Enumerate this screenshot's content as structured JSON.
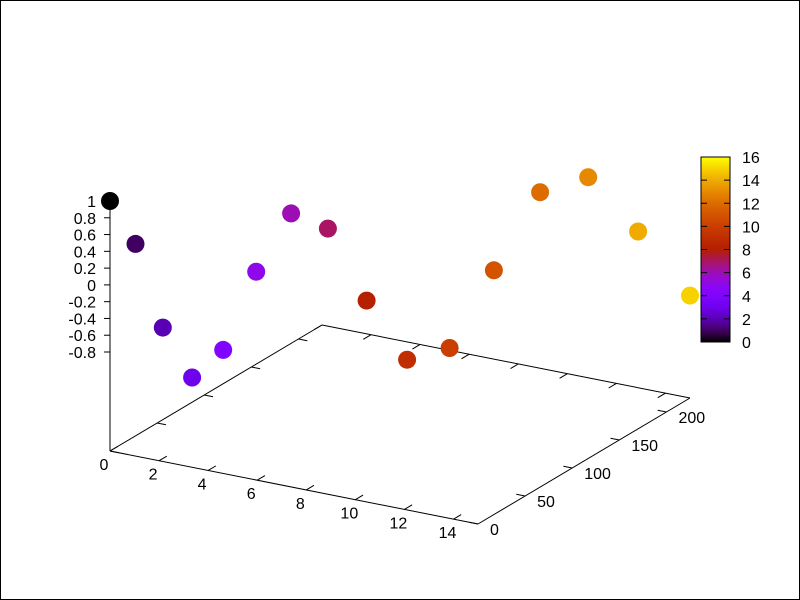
{
  "chart_data": {
    "type": "scatter",
    "title": "",
    "xlabel": "",
    "ylabel": "",
    "zlabel": "",
    "grid": false,
    "x_ticks": [
      "0",
      "2",
      "4",
      "6",
      "8",
      "10",
      "12",
      "14"
    ],
    "y_ticks": [
      "0",
      "50",
      "100",
      "150",
      "200"
    ],
    "z_ticks": [
      "-0.8",
      "-0.6",
      "-0.4",
      "-0.2",
      "0",
      "0.2",
      "0.4",
      "0.6",
      "0.8",
      "1"
    ],
    "xlim": [
      0,
      15
    ],
    "ylim": [
      0,
      225
    ],
    "zlim": [
      -1,
      1
    ],
    "colorbar": {
      "range": [
        0,
        16
      ],
      "ticks": [
        "0",
        "2",
        "4",
        "6",
        "8",
        "10",
        "12",
        "14",
        "16"
      ],
      "palette": "gnuplot default (black-blue-magenta-red-yellow)"
    },
    "points": [
      {
        "x": 0,
        "y": 0,
        "z": 1.0,
        "color": 0
      },
      {
        "x": 1,
        "y": 1,
        "z": 0.54,
        "color": 1
      },
      {
        "x": 2,
        "y": 4,
        "z": -0.42,
        "color": 2
      },
      {
        "x": 3,
        "y": 9,
        "z": -0.99,
        "color": 3
      },
      {
        "x": 4,
        "y": 16,
        "z": -0.65,
        "color": 4
      },
      {
        "x": 5,
        "y": 25,
        "z": 0.28,
        "color": 5
      },
      {
        "x": 6,
        "y": 36,
        "z": 0.96,
        "color": 6
      },
      {
        "x": 7,
        "y": 49,
        "z": 0.75,
        "color": 7
      },
      {
        "x": 8,
        "y": 64,
        "z": -0.15,
        "color": 8
      },
      {
        "x": 9,
        "y": 81,
        "z": -0.91,
        "color": 9
      },
      {
        "x": 10,
        "y": 100,
        "z": -0.84,
        "color": 10
      },
      {
        "x": 11,
        "y": 121,
        "z": 0.004,
        "color": 11
      },
      {
        "x": 12,
        "y": 144,
        "z": 0.84,
        "color": 12
      },
      {
        "x": 13,
        "y": 169,
        "z": 0.91,
        "color": 13
      },
      {
        "x": 14,
        "y": 196,
        "z": 0.14,
        "color": 14
      },
      {
        "x": 15,
        "y": 225,
        "z": -0.76,
        "color": 15
      }
    ]
  }
}
